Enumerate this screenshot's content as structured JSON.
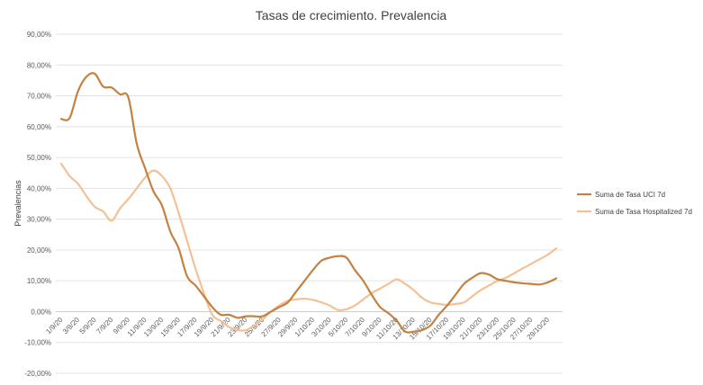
{
  "chart_data": {
    "type": "line",
    "title": "Tasas de crecimiento. Prevalencia",
    "xlabel": "",
    "ylabel": "Prevalencias",
    "ylim": [
      -0.2,
      0.9
    ],
    "y_ticks": [
      0.9,
      0.8,
      0.7,
      0.6,
      0.5,
      0.4,
      0.3,
      0.2,
      0.1,
      0.0,
      -0.1,
      -0.2
    ],
    "y_tick_labels": [
      "90,00%",
      "80,00%",
      "70,00%",
      "60,00%",
      "50,00%",
      "40,00%",
      "30,00%",
      "20,00%",
      "10,00%",
      "0,00%",
      "-10,00%",
      "-20,00%"
    ],
    "grid": true,
    "legend_position": "right",
    "x": [
      "1/9/20",
      "2/9/20",
      "3/9/20",
      "4/9/20",
      "5/9/20",
      "6/9/20",
      "7/9/20",
      "8/9/20",
      "9/9/20",
      "10/9/20",
      "11/9/20",
      "12/9/20",
      "13/9/20",
      "14/9/20",
      "15/9/20",
      "16/9/20",
      "17/9/20",
      "18/9/20",
      "19/9/20",
      "20/9/20",
      "21/9/20",
      "22/9/20",
      "23/9/20",
      "24/9/20",
      "25/9/20",
      "26/9/20",
      "27/9/20",
      "28/9/20",
      "29/9/20",
      "30/9/20",
      "1/10/20",
      "2/10/20",
      "3/10/20",
      "4/10/20",
      "5/10/20",
      "6/10/20",
      "7/10/20",
      "8/10/20",
      "9/10/20",
      "10/10/20",
      "11/10/20",
      "12/10/20",
      "13/10/20",
      "14/10/20",
      "15/10/20",
      "16/10/20",
      "17/10/20",
      "18/10/20",
      "19/10/20",
      "20/10/20",
      "21/10/20",
      "22/10/20",
      "23/10/20",
      "24/10/20",
      "25/10/20",
      "26/10/20",
      "27/10/20",
      "28/10/20",
      "29/10/20",
      "30/10/20"
    ],
    "x_tick_labels": [
      "1/9/20",
      "3/9/20",
      "5/9/20",
      "7/9/20",
      "9/9/20",
      "11/9/20",
      "13/9/20",
      "15/9/20",
      "17/9/20",
      "19/9/20",
      "21/9/20",
      "23/9/20",
      "25/9/20",
      "27/9/20",
      "29/9/20",
      "1/10/20",
      "3/10/20",
      "5/10/20",
      "7/10/20",
      "9/10/20",
      "11/10/20",
      "13/10/20",
      "15/10/20",
      "17/10/20",
      "19/10/20",
      "21/10/20",
      "23/10/20",
      "25/10/20",
      "27/10/20",
      "29/10/20"
    ],
    "series": [
      {
        "name": "Suma de Tasa UCI 7d",
        "color": "#c5813f",
        "values": [
          0.625,
          0.628,
          0.715,
          0.762,
          0.772,
          0.73,
          0.727,
          0.705,
          0.695,
          0.545,
          0.465,
          0.39,
          0.345,
          0.26,
          0.205,
          0.115,
          0.085,
          0.05,
          0.015,
          -0.01,
          -0.01,
          -0.02,
          -0.015,
          -0.015,
          -0.015,
          0.0,
          0.015,
          0.03,
          0.065,
          0.1,
          0.135,
          0.165,
          0.175,
          0.18,
          0.175,
          0.135,
          0.1,
          0.055,
          0.015,
          -0.005,
          -0.03,
          -0.065,
          -0.065,
          -0.06,
          -0.045,
          -0.01,
          0.02,
          0.055,
          0.09,
          0.11,
          0.125,
          0.12,
          0.105,
          0.1,
          0.095,
          0.092,
          0.09,
          0.088,
          0.095,
          0.108
        ]
      },
      {
        "name": "Suma de Tasa Hospitalized 7d",
        "color": "#f4c195",
        "values": [
          0.48,
          0.44,
          0.415,
          0.375,
          0.34,
          0.325,
          0.295,
          0.335,
          0.365,
          0.4,
          0.435,
          0.458,
          0.44,
          0.4,
          0.32,
          0.23,
          0.14,
          0.06,
          -0.01,
          -0.03,
          -0.05,
          -0.06,
          -0.06,
          -0.045,
          -0.025,
          0.0,
          0.02,
          0.035,
          0.04,
          0.042,
          0.038,
          0.03,
          0.02,
          0.005,
          0.008,
          0.02,
          0.04,
          0.06,
          0.075,
          0.09,
          0.105,
          0.09,
          0.07,
          0.045,
          0.03,
          0.025,
          0.022,
          0.025,
          0.03,
          0.05,
          0.07,
          0.085,
          0.1,
          0.11,
          0.125,
          0.14,
          0.155,
          0.17,
          0.185,
          0.205
        ]
      }
    ]
  }
}
